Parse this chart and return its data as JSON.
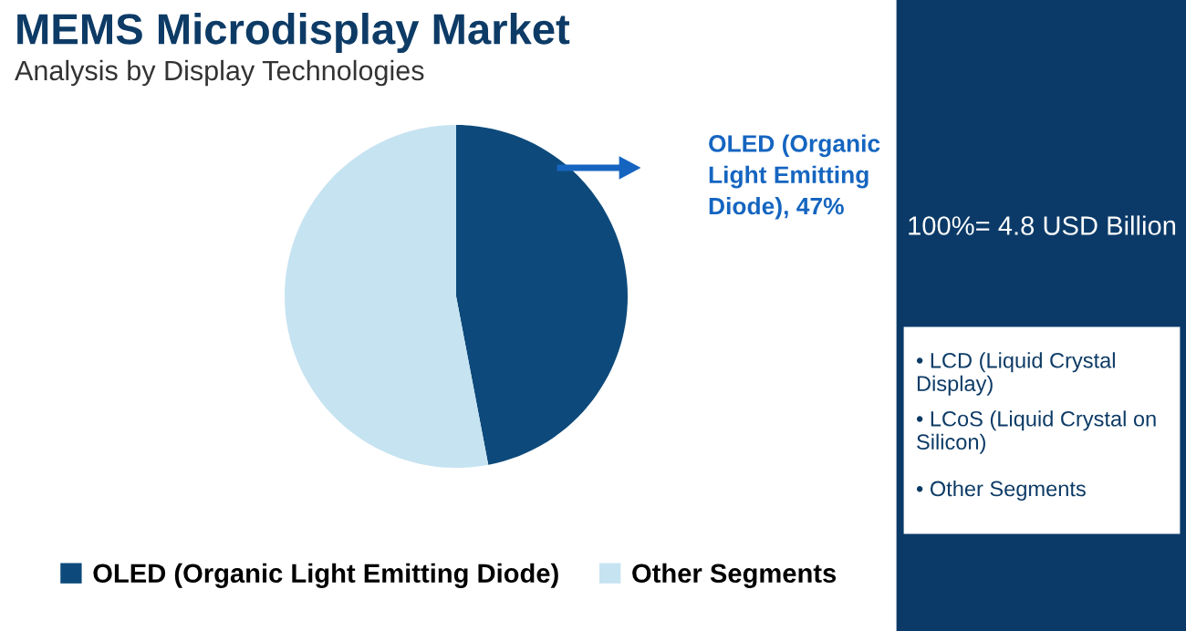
{
  "chart_data": {
    "type": "pie",
    "title": "MEMS Microdisplay Market",
    "subtitle": "Analysis by Display Technologies",
    "categories": [
      "OLED (Organic Light Emitting Diode)",
      "Other Segments"
    ],
    "values": [
      47,
      53
    ],
    "colors": [
      "#0d4a7b",
      "#c6e3f1"
    ],
    "value_labels": [
      "OLED (Organic Light Emitting Diode), 47%",
      null
    ],
    "legend": "bottom",
    "annotations": [
      "100%= 4.8 USD Billion",
      "• LCD (Liquid Crystal Display)",
      "• LCoS (Liquid Crystal on Silicon)",
      "• Other Segments"
    ]
  }
}
